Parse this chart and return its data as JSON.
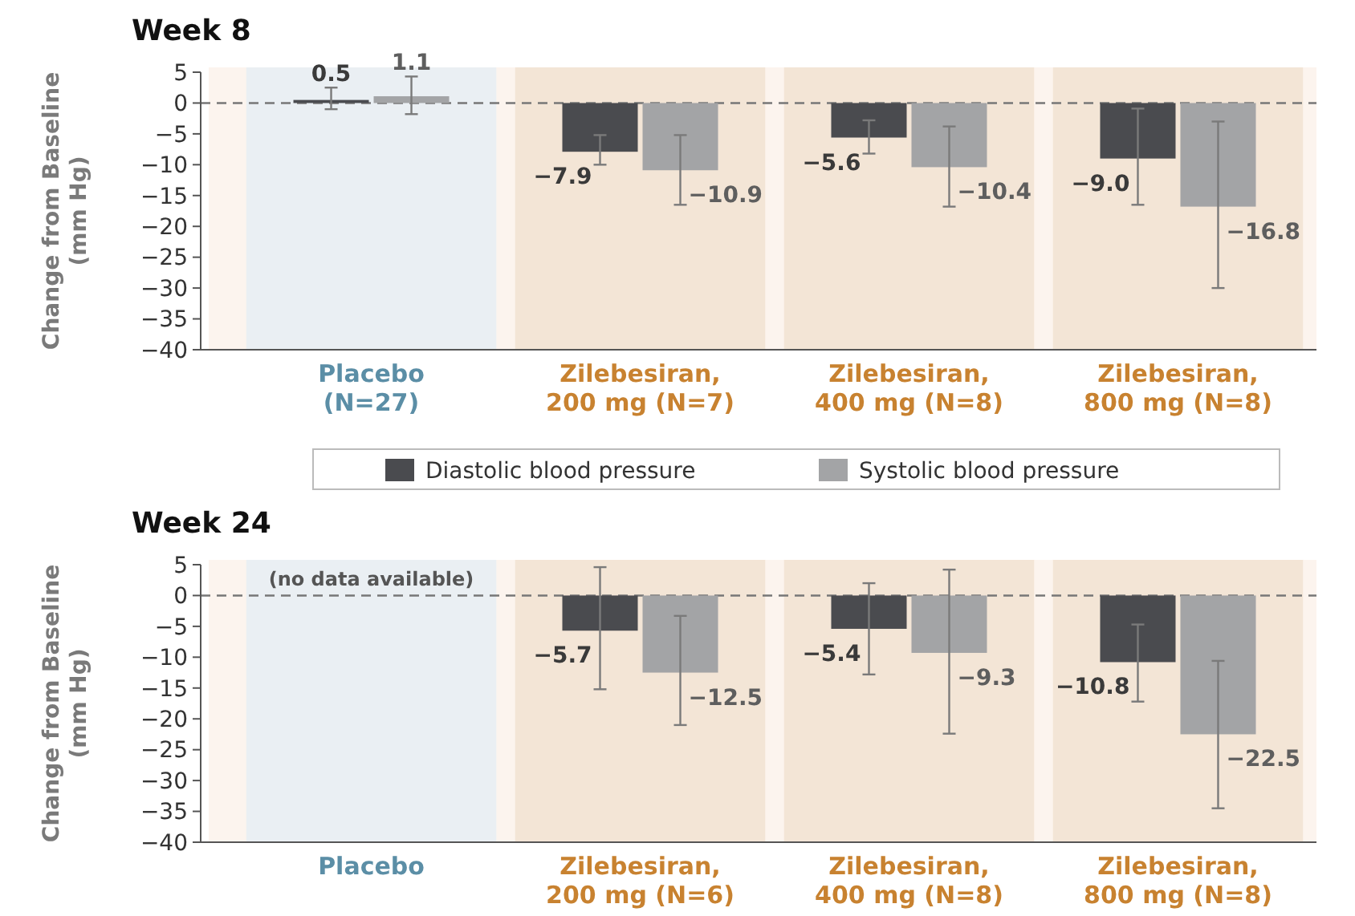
{
  "chart_data": [
    {
      "type": "bar",
      "title": "Week 8",
      "ylabel": "Change from Baseline\n(mm Hg)",
      "categories": [
        "Placebo\n(N=27)",
        "Zilebesiran,\n200 mg (N=7)",
        "Zilebesiran,\n400 mg (N=8)",
        "Zilebesiran,\n800 mg (N=8)"
      ],
      "series": [
        {
          "name": "Diastolic blood pressure",
          "color": "#4a4b4f",
          "values": [
            0.5,
            -7.9,
            -5.6,
            -9.0
          ],
          "value_labels": [
            "0.5",
            "−7.9",
            "−5.6",
            "−9.0"
          ],
          "errors": [
            [
              -1.0,
              2.5
            ],
            [
              -10.0,
              -5.2
            ],
            [
              -8.2,
              -2.8
            ],
            [
              -16.5,
              -0.9
            ]
          ]
        },
        {
          "name": "Systolic blood pressure",
          "color": "#a3a4a6",
          "values": [
            1.1,
            -10.9,
            -10.4,
            -16.8
          ],
          "value_labels": [
            "1.1",
            "−10.9",
            "−10.4",
            "−16.8"
          ],
          "errors": [
            [
              -1.8,
              4.3
            ],
            [
              -16.5,
              -5.2
            ],
            [
              -16.8,
              -3.8
            ],
            [
              -30.0,
              -3.0
            ]
          ]
        }
      ],
      "ylim": [
        -40,
        5
      ],
      "yticks": [
        {
          "value": 5,
          "label": "5"
        },
        {
          "value": 0,
          "label": "0"
        },
        {
          "value": -5,
          "label": "−5"
        },
        {
          "value": -10,
          "label": "−10"
        },
        {
          "value": -15,
          "label": "−15"
        },
        {
          "value": -20,
          "label": "−20"
        },
        {
          "value": -25,
          "label": "−25"
        },
        {
          "value": -30,
          "label": "−30"
        },
        {
          "value": -35,
          "label": "−35"
        },
        {
          "value": -40,
          "label": "−40"
        }
      ],
      "ref_lines": [
        {
          "axis": "y",
          "value": 0,
          "line_style": "dashed",
          "color": "#777777"
        }
      ],
      "grid": false,
      "legend": "bottom"
    },
    {
      "type": "bar",
      "title": "Week 24",
      "ylabel": "Change from Baseline\n(mm Hg)",
      "categories": [
        "Placebo",
        "Zilebesiran,\n200 mg (N=6)",
        "Zilebesiran,\n400 mg (N=8)",
        "Zilebesiran,\n800 mg (N=8)"
      ],
      "series": [
        {
          "color": "#4a4b4f",
          "values": [
            null,
            -5.7,
            -5.4,
            -10.8
          ],
          "value_labels": [
            null,
            "−5.7",
            "−5.4",
            "−10.8"
          ],
          "errors": [
            null,
            [
              -15.2,
              4.6
            ],
            [
              -12.8,
              2.0
            ],
            [
              -17.2,
              -4.7
            ]
          ]
        },
        {
          "color": "#a3a4a6",
          "values": [
            null,
            -12.5,
            -9.3,
            -22.5
          ],
          "value_labels": [
            null,
            "−12.5",
            "−9.3",
            "−22.5"
          ],
          "errors": [
            null,
            [
              -21.0,
              -3.3
            ],
            [
              -22.4,
              4.2
            ],
            [
              -34.5,
              -10.6
            ]
          ]
        }
      ],
      "ylim": [
        -40,
        5
      ],
      "yticks": [
        {
          "value": 5,
          "label": "5"
        },
        {
          "value": 0,
          "label": "0"
        },
        {
          "value": -5,
          "label": "−5"
        },
        {
          "value": -10,
          "label": "−10"
        },
        {
          "value": -15,
          "label": "−15"
        },
        {
          "value": -20,
          "label": "−20"
        },
        {
          "value": -25,
          "label": "−25"
        },
        {
          "value": -30,
          "label": "−30"
        },
        {
          "value": -35,
          "label": "−35"
        },
        {
          "value": -40,
          "label": "−40"
        }
      ],
      "ref_lines": [
        {
          "axis": "y",
          "value": 0,
          "line_style": "dashed",
          "color": "#777777"
        }
      ],
      "annotations": [
        "(no data available)"
      ],
      "grid": false,
      "legend": false
    }
  ]
}
